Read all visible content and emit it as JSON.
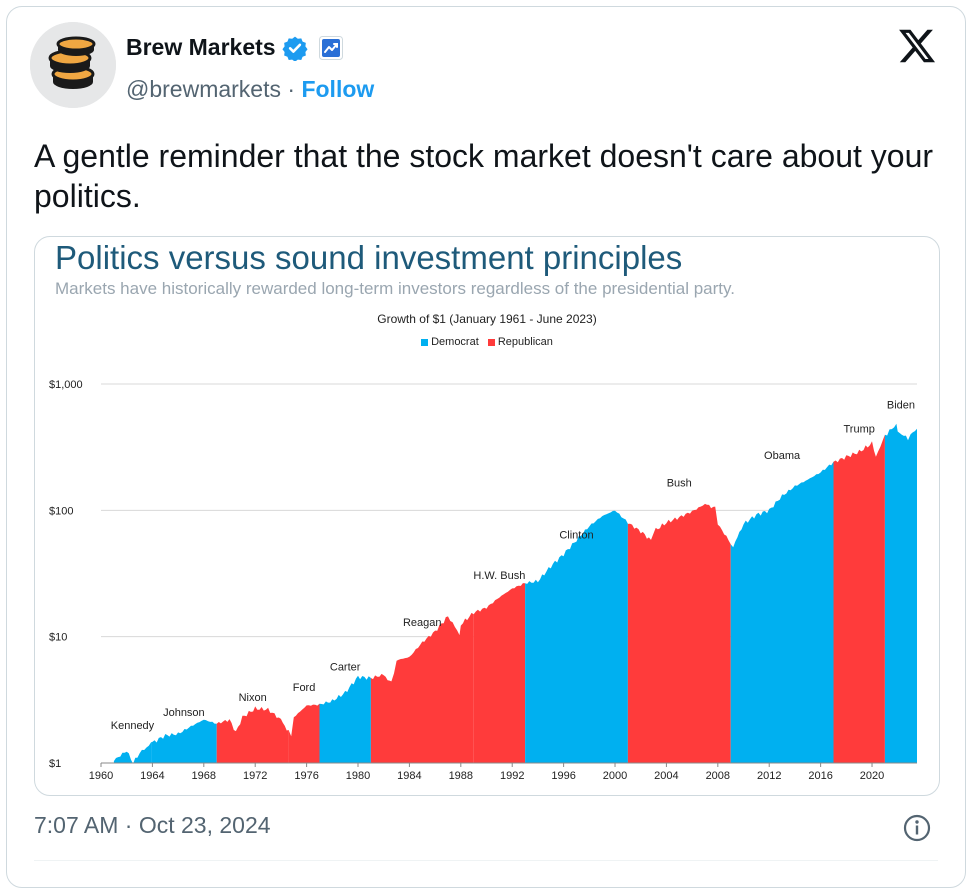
{
  "author": {
    "name": "Brew Markets",
    "handle": "@brewmarkets",
    "separator": "·",
    "follow_label": "Follow",
    "avatar_icon": "coin-stack-icon",
    "verified_icon": "verified-badge-icon",
    "affiliate_icon": "chart-badge-icon"
  },
  "platform_icon": "x-logo-icon",
  "tweet": {
    "text": "A gentle reminder that the stock market doesn't care about your politics."
  },
  "image": {
    "title": "Politics versus sound investment principles",
    "subtitle": "Markets have historically rewarded long-term investors regardless of the presidential party."
  },
  "chart_data": {
    "type": "area",
    "title": "Growth of $1 (January 1961 - June 2023)",
    "xlabel": "",
    "ylabel": "",
    "y_scale": "log",
    "ylim": [
      1,
      1000
    ],
    "xlim": [
      1960,
      2023.5
    ],
    "yticks": [
      "$1",
      "$10",
      "$100",
      "$1,000"
    ],
    "ytick_values": [
      1,
      10,
      100,
      1000
    ],
    "xticks": [
      "1960",
      "1964",
      "1968",
      "1972",
      "1976",
      "1980",
      "1984",
      "1988",
      "1992",
      "1996",
      "2000",
      "2004",
      "2008",
      "2012",
      "2016",
      "2020"
    ],
    "xtick_values": [
      1960,
      1964,
      1968,
      1972,
      1976,
      1980,
      1984,
      1988,
      1992,
      1996,
      2000,
      2004,
      2008,
      2012,
      2016,
      2020
    ],
    "grid": true,
    "legend_position": "top-center",
    "legend": [
      {
        "name": "Democrat",
        "color": "#00b0f0"
      },
      {
        "name": "Republican",
        "color": "#ff3b3b"
      }
    ],
    "colors": {
      "Democrat": "#00b0f0",
      "Republican": "#ff3b3b"
    },
    "series": [
      {
        "name": "Growth of $1",
        "x": [
          1961,
          1962,
          1962.5,
          1963,
          1964,
          1965,
          1966,
          1967,
          1968,
          1969,
          1970,
          1970.5,
          1971,
          1972,
          1973,
          1974,
          1974.8,
          1975,
          1976,
          1977,
          1978,
          1979,
          1980,
          1981,
          1982,
          1982.6,
          1983,
          1984,
          1985,
          1986,
          1987,
          1987.9,
          1988,
          1989,
          1990,
          1991,
          1992,
          1993,
          1994,
          1995,
          1996,
          1997,
          1998,
          1999,
          2000,
          2001,
          2002,
          2002.8,
          2003,
          2004,
          2005,
          2006,
          2007,
          2007.8,
          2008,
          2009,
          2009.2,
          2010,
          2011,
          2012,
          2013,
          2014,
          2015,
          2016,
          2017,
          2018,
          2019,
          2020,
          2020.3,
          2021,
          2021.9,
          2022,
          2022.8,
          2023,
          2023.5
        ],
        "values": [
          1.05,
          1.25,
          1.0,
          1.2,
          1.45,
          1.65,
          1.7,
          1.95,
          2.2,
          2.05,
          2.2,
          1.75,
          2.3,
          2.7,
          2.65,
          2.2,
          1.65,
          2.3,
          2.85,
          2.9,
          3.1,
          3.6,
          4.8,
          4.7,
          5.0,
          4.3,
          6.5,
          6.9,
          9.0,
          11.0,
          14.5,
          10.5,
          12.5,
          15.5,
          17.0,
          20.5,
          24.0,
          26.5,
          27.5,
          36.0,
          45.0,
          58.0,
          75.0,
          90.0,
          100.0,
          80.0,
          68.0,
          58.0,
          68.0,
          80.0,
          88.0,
          98.0,
          112.0,
          104.0,
          78.0,
          55.0,
          52.0,
          78.0,
          92.0,
          100.0,
          130.0,
          155.0,
          175.0,
          200.0,
          240.0,
          265.0,
          290.0,
          340.0,
          265.0,
          390.0,
          480.0,
          420.0,
          370.0,
          400.0,
          440.0
        ]
      }
    ],
    "presidents": [
      {
        "name": "Kennedy",
        "party": "Democrat",
        "start": 1961,
        "end": 1963.9,
        "label_y": 1.85
      },
      {
        "name": "Johnson",
        "party": "Democrat",
        "start": 1963.9,
        "end": 1969,
        "label_y": 2.35
      },
      {
        "name": "Nixon",
        "party": "Republican",
        "start": 1969,
        "end": 1974.6,
        "label_y": 3.1
      },
      {
        "name": "Ford",
        "party": "Republican",
        "start": 1974.6,
        "end": 1977,
        "label_y": 3.7
      },
      {
        "name": "Carter",
        "party": "Democrat",
        "start": 1977,
        "end": 1981,
        "label_y": 5.4
      },
      {
        "name": "Reagan",
        "party": "Republican",
        "start": 1981,
        "end": 1989,
        "label_y": 12.2
      },
      {
        "name": "H.W. Bush",
        "party": "Republican",
        "start": 1989,
        "end": 1993,
        "label_y": 28.5
      },
      {
        "name": "Clinton",
        "party": "Democrat",
        "start": 1993,
        "end": 2001,
        "label_y": 60
      },
      {
        "name": "Bush",
        "party": "Republican",
        "start": 2001,
        "end": 2009,
        "label_y": 155
      },
      {
        "name": "Obama",
        "party": "Democrat",
        "start": 2009,
        "end": 2017,
        "label_y": 255
      },
      {
        "name": "Trump",
        "party": "Republican",
        "start": 2017,
        "end": 2021,
        "label_y": 415
      },
      {
        "name": "Biden",
        "party": "Democrat",
        "start": 2021,
        "end": 2023.5,
        "label_y": 640
      }
    ]
  },
  "footer": {
    "timestamp": "7:07 AM · Oct 23, 2024",
    "info_icon": "info-icon"
  }
}
